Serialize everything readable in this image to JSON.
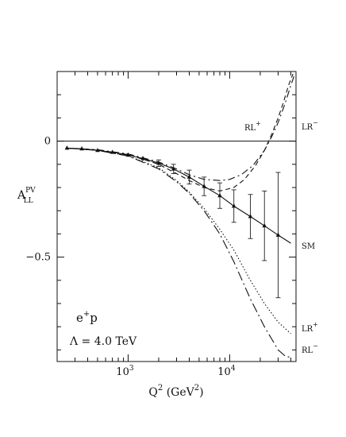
{
  "chart_data": {
    "type": "line",
    "xscale": "log",
    "xlim": [
      200,
      45000
    ],
    "ylim": [
      -0.95,
      0.3
    ],
    "xlabel": {
      "main": "Q",
      "sup": "2",
      "paren": " (GeV",
      "paren_sup": "2",
      "close": ")"
    },
    "ylabel": {
      "main": "A",
      "sup": "PV",
      "sub": "LL"
    },
    "x_ticks": [
      {
        "value": 1000,
        "label_base": "10",
        "label_exp": "3"
      },
      {
        "value": 10000,
        "label_base": "10",
        "label_exp": "4"
      }
    ],
    "y_ticks": [
      {
        "value": 0,
        "label": "0"
      },
      {
        "value": -0.5,
        "label": "−0.5"
      }
    ],
    "reference_line": 0,
    "annotations": [
      {
        "id": "process",
        "text": "e",
        "sup": "+",
        "tail": "p"
      },
      {
        "id": "lambda",
        "text": "Λ = 4.0 TeV"
      }
    ],
    "series": [
      {
        "name": "SM",
        "label_sup": "",
        "style": "solid",
        "markers": true,
        "x": [
          250,
          350,
          500,
          700,
          1000,
          1400,
          2000,
          2800,
          4000,
          5600,
          8000,
          11000,
          16000,
          22000,
          30000,
          40000
        ],
        "y": [
          -0.03,
          -0.033,
          -0.04,
          -0.048,
          -0.06,
          -0.075,
          -0.095,
          -0.12,
          -0.155,
          -0.195,
          -0.235,
          -0.28,
          -0.325,
          -0.365,
          -0.405,
          -0.44
        ]
      },
      {
        "name": "LR",
        "label_sup": "+",
        "style": "dotted",
        "markers": false,
        "x": [
          250,
          500,
          1000,
          2000,
          3000,
          4000,
          5600,
          8000,
          11000,
          16000,
          22000,
          30000,
          40000
        ],
        "y": [
          -0.03,
          -0.04,
          -0.063,
          -0.115,
          -0.17,
          -0.22,
          -0.29,
          -0.38,
          -0.47,
          -0.6,
          -0.7,
          -0.78,
          -0.83
        ]
      },
      {
        "name": "RL",
        "label_sup": "−",
        "style": "dashdot-long",
        "markers": false,
        "x": [
          250,
          500,
          1000,
          2000,
          3000,
          4000,
          5600,
          8000,
          11000,
          16000,
          22000,
          30000,
          36000,
          40000
        ],
        "y": [
          -0.03,
          -0.04,
          -0.064,
          -0.12,
          -0.175,
          -0.225,
          -0.3,
          -0.4,
          -0.52,
          -0.68,
          -0.8,
          -0.9,
          -0.93,
          -0.93
        ]
      },
      {
        "name": "LR",
        "label_sup": "−",
        "style": "dashed",
        "markers": false,
        "x": [
          250,
          500,
          1000,
          2000,
          3000,
          4000,
          5600,
          8000,
          11000,
          14000,
          18000,
          22000,
          26000,
          30000,
          34000,
          38000,
          42000
        ],
        "y": [
          -0.03,
          -0.038,
          -0.058,
          -0.1,
          -0.14,
          -0.17,
          -0.2,
          -0.215,
          -0.2,
          -0.165,
          -0.105,
          -0.04,
          0.03,
          0.1,
          0.17,
          0.24,
          0.29
        ]
      },
      {
        "name": "RL",
        "label_sup": "+",
        "style": "dashdot",
        "markers": false,
        "x": [
          250,
          500,
          1000,
          2000,
          3000,
          4000,
          5600,
          8000,
          10000,
          13000,
          17000,
          22000,
          26000,
          30000,
          35000,
          40000,
          43000
        ],
        "y": [
          -0.03,
          -0.037,
          -0.055,
          -0.09,
          -0.12,
          -0.145,
          -0.165,
          -0.17,
          -0.165,
          -0.145,
          -0.105,
          -0.04,
          0.02,
          0.08,
          0.16,
          0.24,
          0.28
        ]
      }
    ],
    "error_bars": {
      "series": "SM",
      "x": [
        250,
        350,
        500,
        700,
        1000,
        1400,
        2000,
        2800,
        4000,
        5600,
        8000,
        11000,
        16000,
        22000,
        30000
      ],
      "y": [
        -0.03,
        -0.033,
        -0.04,
        -0.048,
        -0.06,
        -0.075,
        -0.095,
        -0.12,
        -0.155,
        -0.195,
        -0.235,
        -0.28,
        -0.325,
        -0.365,
        -0.405
      ],
      "err": [
        0.003,
        0.004,
        0.005,
        0.006,
        0.008,
        0.01,
        0.014,
        0.02,
        0.03,
        0.04,
        0.055,
        0.07,
        0.095,
        0.15,
        0.27
      ]
    }
  }
}
